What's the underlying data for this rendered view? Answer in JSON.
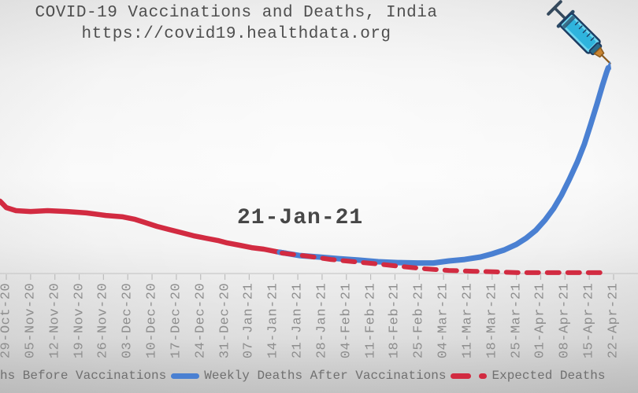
{
  "header": {
    "title": "COVID-19 Vaccinations and Deaths, India",
    "url": "https://covid19.healthdata.org"
  },
  "annotation": {
    "vaccination_start_label": "21-Jan-21"
  },
  "legend": {
    "items": [
      {
        "label": "hs Before Vaccinations",
        "marker": "truncated-offscreen",
        "color": "#d22b41"
      },
      {
        "label": "Weekly Deaths After Vaccinations",
        "marker": "solid-line",
        "color": "#4a80d2"
      },
      {
        "label": "Expected Deaths",
        "marker": "dashed-line",
        "color": "#d22b41"
      }
    ]
  },
  "colors": {
    "red": "#d22b41",
    "blue": "#4a80d2",
    "axis_line": "#c9c9c9",
    "tick_mark": "#bdbdbd",
    "title_text": "#4f4f4f",
    "tick_text": "#8e8e8e",
    "legend_text": "#707070"
  },
  "chart_data": {
    "type": "line",
    "title": "COVID-19 Vaccinations and Deaths, India",
    "subtitle": "https://covid19.healthdata.org",
    "x_axis": {
      "categories": [
        "29-Oct-20",
        "05-Nov-20",
        "12-Nov-20",
        "19-Nov-20",
        "26-Nov-20",
        "03-Dec-20",
        "10-Dec-20",
        "17-Dec-20",
        "24-Dec-20",
        "31-Dec-20",
        "07-Jan-21",
        "14-Jan-21",
        "21-Jan-21",
        "28-Jan-21",
        "04-Feb-21",
        "11-Feb-21",
        "18-Feb-21",
        "25-Feb-21",
        "04-Mar-21",
        "11-Mar-21",
        "18-Mar-21",
        "25-Mar-21",
        "01-Apr-21",
        "08-Apr-21",
        "15-Apr-21",
        "22-Apr-21"
      ],
      "tick_label_rotation": -90
    },
    "y_axis": {
      "visible": false,
      "value_scale": "relative 0-100; no y-axis labels shown in image; 100 = final peak of blue series at syringe tip"
    },
    "grid": false,
    "legend_position": "bottom",
    "annotations": [
      {
        "text": "21-Jan-21",
        "x_category": "21-Jan-21",
        "placement": "above line, center of chart"
      }
    ],
    "series": [
      {
        "name": "hs Before Vaccinations",
        "style": "solid",
        "color": "#d22b41",
        "width": 6.5,
        "points": [
          [
            -0.26,
            35.0
          ],
          [
            0,
            31.9
          ],
          [
            0.4,
            30.4
          ],
          [
            1.0,
            30.0
          ],
          [
            1.7,
            30.4
          ],
          [
            2.5,
            30.0
          ],
          [
            3.3,
            29.3
          ],
          [
            4.1,
            28.1
          ],
          [
            4.8,
            27.4
          ],
          [
            5.3,
            26.2
          ],
          [
            5.7,
            24.7
          ],
          [
            6.2,
            22.8
          ],
          [
            6.7,
            21.3
          ],
          [
            7.2,
            19.8
          ],
          [
            7.7,
            18.3
          ],
          [
            8.2,
            17.1
          ],
          [
            8.7,
            16.0
          ],
          [
            9.1,
            14.8
          ],
          [
            9.6,
            13.7
          ],
          [
            10.1,
            12.5
          ],
          [
            10.6,
            11.8
          ],
          [
            11.1,
            10.6
          ],
          [
            11.5,
            9.9
          ]
        ]
      },
      {
        "name": "Weekly Deaths After Vaccinations",
        "style": "solid",
        "color": "#4a80d2",
        "width": 7,
        "points": [
          [
            11.25,
            10.3
          ],
          [
            12.06,
            8.7
          ],
          [
            12.87,
            8.0
          ],
          [
            13.69,
            7.2
          ],
          [
            14.5,
            6.5
          ],
          [
            15.31,
            5.7
          ],
          [
            16.12,
            5.3
          ],
          [
            16.93,
            5.1
          ],
          [
            17.58,
            5.1
          ],
          [
            18.22,
            6.1
          ],
          [
            18.87,
            6.8
          ],
          [
            19.52,
            8.0
          ],
          [
            20.0,
            9.5
          ],
          [
            20.5,
            11.4
          ],
          [
            21.0,
            14.1
          ],
          [
            21.4,
            17.1
          ],
          [
            21.8,
            20.9
          ],
          [
            22.18,
            25.9
          ],
          [
            22.54,
            31.6
          ],
          [
            22.86,
            38.0
          ],
          [
            23.18,
            45.6
          ],
          [
            23.51,
            54.0
          ],
          [
            23.8,
            62.7
          ],
          [
            24.06,
            72.2
          ],
          [
            24.32,
            82.1
          ],
          [
            24.55,
            91.3
          ],
          [
            24.71,
            97.3
          ],
          [
            24.78,
            99.5
          ]
        ]
      },
      {
        "name": "Expected Deaths",
        "style": "dashed",
        "color": "#d22b41",
        "width": 6,
        "points": [
          [
            11.35,
            9.9
          ],
          [
            12.39,
            8.4
          ],
          [
            13.36,
            6.8
          ],
          [
            14.33,
            5.7
          ],
          [
            15.31,
            4.6
          ],
          [
            16.28,
            3.4
          ],
          [
            17.25,
            2.3
          ],
          [
            18.22,
            1.5
          ],
          [
            19.2,
            1.1
          ],
          [
            20.17,
            0.8
          ],
          [
            21.14,
            0.4
          ],
          [
            22.44,
            0.4
          ],
          [
            23.73,
            0.4
          ],
          [
            24.64,
            0.4
          ]
        ]
      }
    ]
  }
}
